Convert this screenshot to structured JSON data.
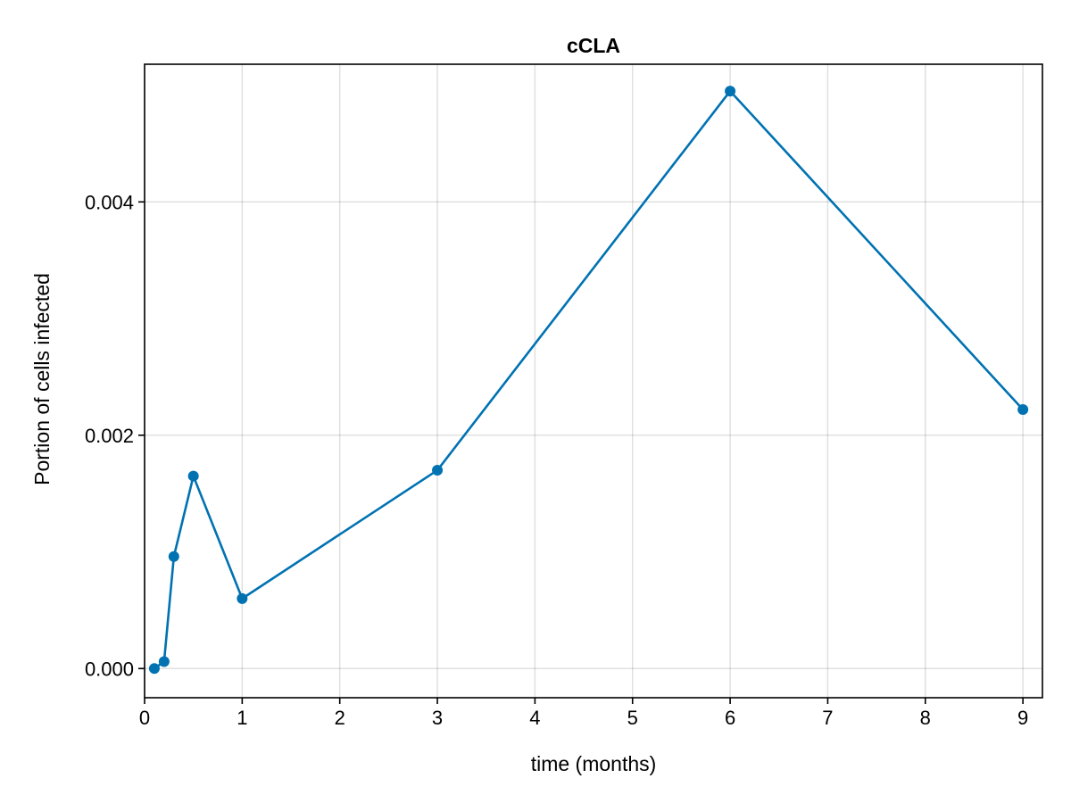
{
  "chart_data": {
    "type": "line",
    "title": "cCLA",
    "xlabel": "time (months)",
    "ylabel": "Portion of cells infected",
    "xlim": [
      0,
      9.2
    ],
    "ylim": [
      -0.00025,
      0.00518
    ],
    "xticks": [
      0,
      1,
      2,
      3,
      4,
      5,
      6,
      7,
      8,
      9
    ],
    "xtick_labels": [
      "0",
      "1",
      "2",
      "3",
      "4",
      "5",
      "6",
      "7",
      "8",
      "9"
    ],
    "yticks": [
      0.0,
      0.002,
      0.004
    ],
    "ytick_labels": [
      "0.000",
      "0.002",
      "0.004"
    ],
    "grid": true,
    "series": [
      {
        "color": "#0072b2",
        "markers": true,
        "points": [
          {
            "x": 0.1,
            "y": 0.0
          },
          {
            "x": 0.2,
            "y": 6e-05
          },
          {
            "x": 0.3,
            "y": 0.00096
          },
          {
            "x": 0.5,
            "y": 0.00165
          },
          {
            "x": 1.0,
            "y": 0.0006
          },
          {
            "x": 3.0,
            "y": 0.0017
          },
          {
            "x": 6.0,
            "y": 0.00495
          },
          {
            "x": 9.0,
            "y": 0.00222
          }
        ]
      }
    ]
  }
}
